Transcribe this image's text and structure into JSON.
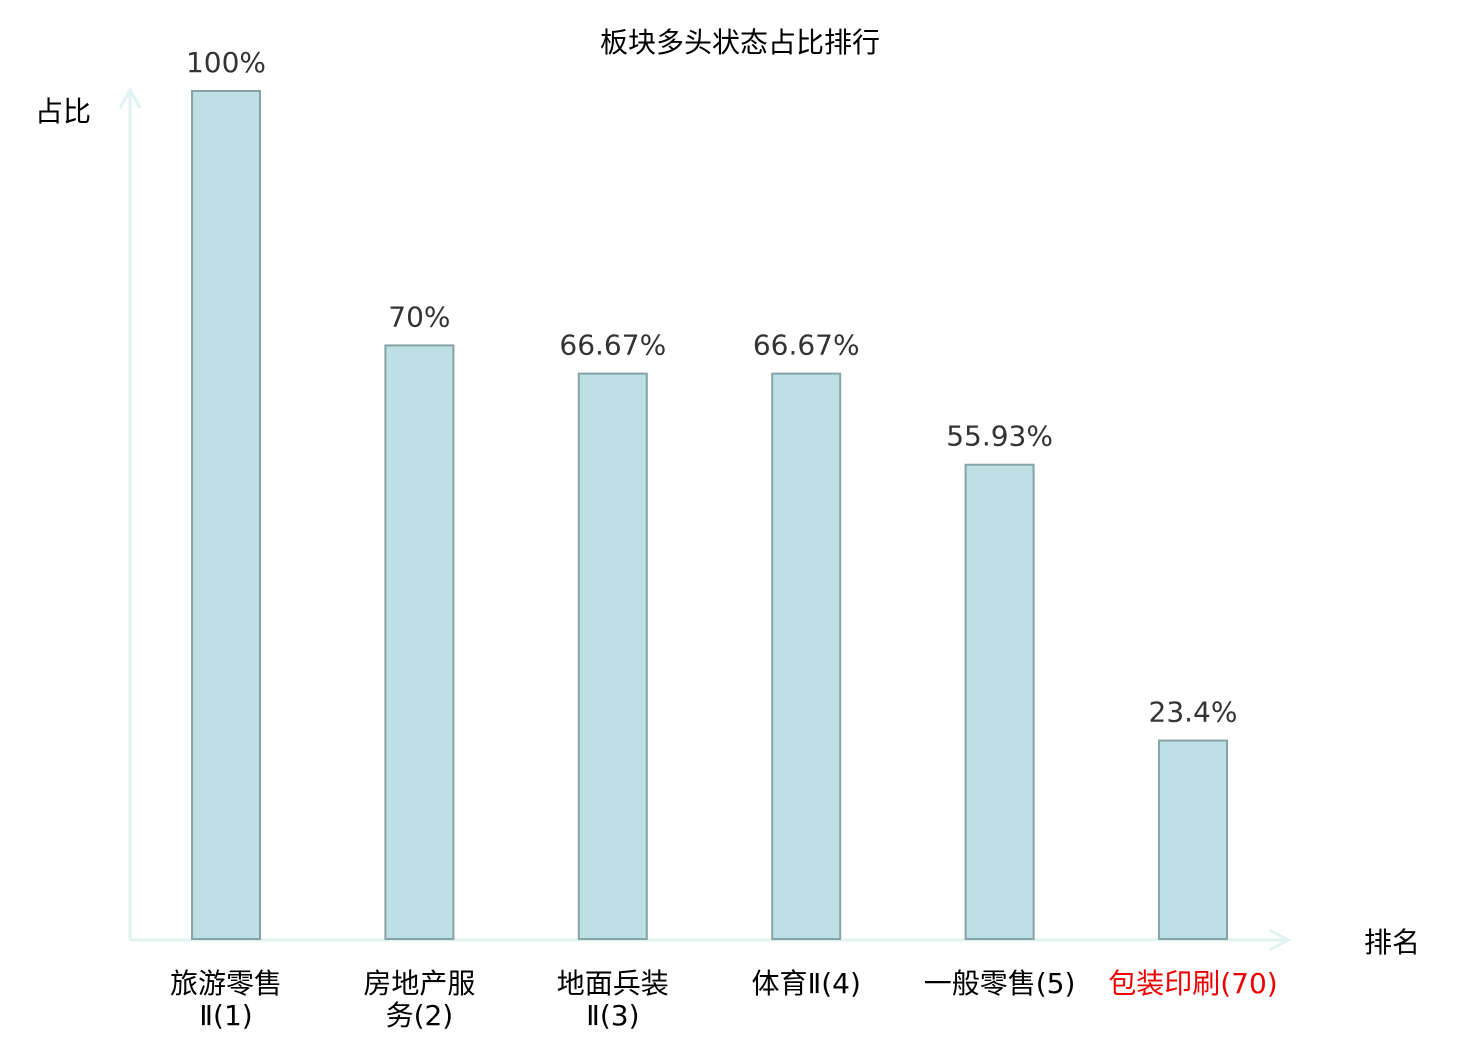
{
  "chart_data": {
    "type": "bar",
    "title": "板块多头状态占比排行",
    "xlabel": "排名",
    "ylabel": "占比",
    "categories": [
      [
        "旅游零售",
        "Ⅱ(1)"
      ],
      [
        "房地产服",
        "务(2)"
      ],
      [
        "地面兵装",
        "Ⅱ(3)"
      ],
      [
        "体育Ⅱ(4)"
      ],
      [
        "一般零售(5)"
      ],
      [
        "包装印刷(70)"
      ]
    ],
    "values": [
      100,
      70,
      66.67,
      66.67,
      55.93,
      23.4
    ],
    "data_labels": [
      "100%",
      "70%",
      "66.67%",
      "66.67%",
      "55.93%",
      "23.4%"
    ],
    "ylim": [
      0,
      100
    ],
    "grid": false,
    "category_label_colors": [
      "#000000",
      "#000000",
      "#000000",
      "#000000",
      "#000000",
      "#ee0000"
    ],
    "colors": {
      "bar_fill": "#bce0e3",
      "bar_stroke": "#86a4a6",
      "axis": "#e0f3f1",
      "label": "#333333"
    }
  }
}
